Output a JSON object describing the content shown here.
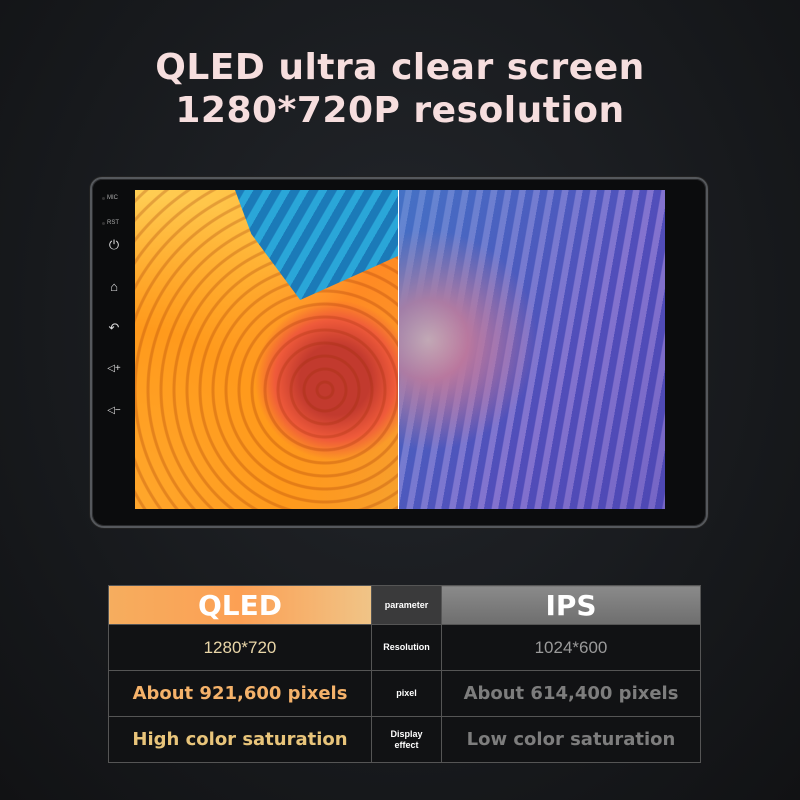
{
  "headline": {
    "line1": "QLED ultra clear screen",
    "line2": "1280*720P resolution"
  },
  "device": {
    "labels": {
      "mic": "MIC",
      "rst": "RST"
    },
    "buttons": [
      "power-icon",
      "home-icon",
      "back-icon",
      "volume-up-icon",
      "volume-down-icon"
    ]
  },
  "table": {
    "header": {
      "left": "QLED",
      "middle": "parameter",
      "right": "IPS"
    },
    "rows": [
      {
        "left": "1280*720",
        "middle": "Resolution",
        "right": "1024*600"
      },
      {
        "left": "About 921,600 pixels",
        "middle": "pixel",
        "right": "About 614,400 pixels"
      },
      {
        "left": "High color saturation",
        "middle_line1": "Display",
        "middle_line2": "effect",
        "right": "Low color saturation"
      }
    ],
    "colors": {
      "qled_header": "#fca054",
      "ips_header": "#7d7d7d",
      "qled_text": "#f5b26a",
      "ips_text": "#7d7d7d"
    }
  }
}
